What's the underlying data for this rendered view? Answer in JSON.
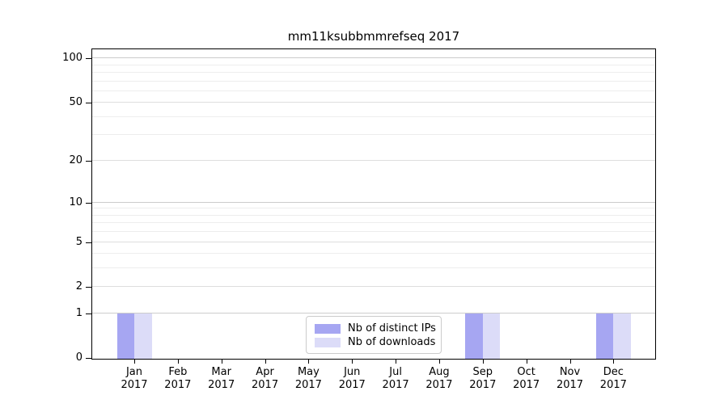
{
  "figure": {
    "title": "mm11ksubbmmrefseq 2017",
    "background": "#ffffff"
  },
  "chart_data": {
    "type": "bar",
    "title": "mm11ksubbmmrefseq 2017",
    "categories": [
      "Jan",
      "Feb",
      "Mar",
      "Apr",
      "May",
      "Jun",
      "Jul",
      "Aug",
      "Sep",
      "Oct",
      "Nov",
      "Dec"
    ],
    "category_year": "2017",
    "series": [
      {
        "name": "Nb of distinct IPs",
        "color": "#a6a6f2",
        "values": [
          1,
          0,
          0,
          0,
          0,
          0,
          0,
          0,
          1,
          0,
          0,
          1
        ]
      },
      {
        "name": "Nb of downloads",
        "color": "#dcdcf8",
        "values": [
          1,
          0,
          0,
          0,
          0,
          0,
          0,
          0,
          1,
          0,
          0,
          1
        ]
      }
    ],
    "xlabel": "",
    "ylabel": "",
    "yscale": "log1p",
    "ylim": [
      0,
      115
    ],
    "yticks": [
      0,
      1,
      2,
      5,
      10,
      20,
      50,
      100
    ],
    "minor_yticks": [
      3,
      4,
      6,
      7,
      8,
      9,
      30,
      40,
      60,
      70,
      80,
      90
    ],
    "grid": true,
    "grid_color_major": "#cccccc",
    "grid_color_mid": "#dedede",
    "grid_color_minor": "#ededed",
    "legend_position": "lower center"
  }
}
